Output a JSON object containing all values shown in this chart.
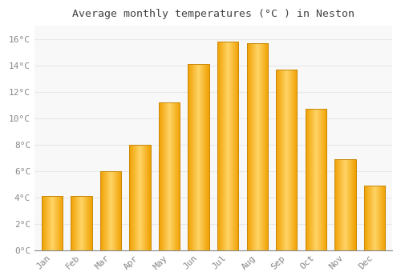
{
  "title": "Average monthly temperatures (°C ) in Neston",
  "months": [
    "Jan",
    "Feb",
    "Mar",
    "Apr",
    "May",
    "Jun",
    "Jul",
    "Aug",
    "Sep",
    "Oct",
    "Nov",
    "Dec"
  ],
  "values": [
    4.1,
    4.1,
    6.0,
    8.0,
    11.2,
    14.1,
    15.8,
    15.7,
    13.7,
    10.7,
    6.9,
    4.9
  ],
  "bar_color_light": "#FFD466",
  "bar_color_dark": "#F0A000",
  "bar_edge_color": "#C8880A",
  "background_color": "#FFFFFF",
  "plot_bg_color": "#F8F8F8",
  "grid_color": "#E8E8E8",
  "tick_color": "#888888",
  "title_color": "#444444",
  "ylim": [
    0,
    17
  ],
  "yticks": [
    0,
    2,
    4,
    6,
    8,
    10,
    12,
    14,
    16
  ],
  "ytick_labels": [
    "0°C",
    "2°C",
    "4°C",
    "6°C",
    "8°C",
    "10°C",
    "12°C",
    "14°C",
    "16°C"
  ]
}
